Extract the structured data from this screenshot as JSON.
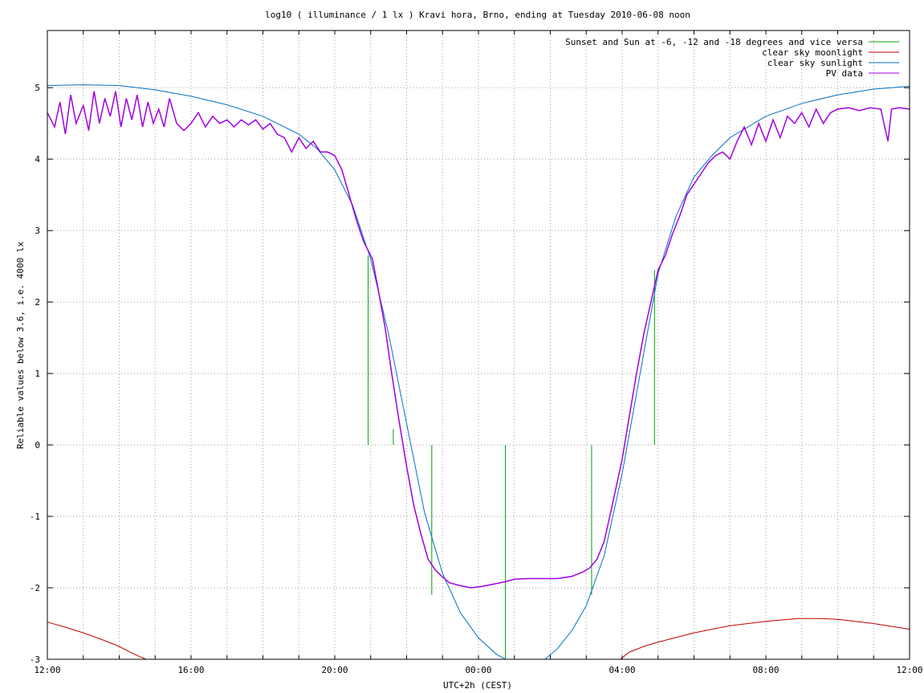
{
  "chart_data": {
    "type": "line",
    "title": "log10 ( illuminance / 1 lx ) Kravi hora, Brno, ending at Tuesday 2010-06-08 noon",
    "xlabel": "UTC+2h (CEST)",
    "ylabel": "Reliable values below 3.6, i.e. 4000 lx",
    "xlim": [
      0,
      24
    ],
    "ylim": [
      -3,
      5.8
    ],
    "x_unit": "hours since 2010-06-07 12:00 (UTC+2h)",
    "x_ticks": [
      {
        "v": 0,
        "label": "12:00"
      },
      {
        "v": 4,
        "label": "16:00"
      },
      {
        "v": 8,
        "label": "20:00"
      },
      {
        "v": 12,
        "label": "00:00"
      },
      {
        "v": 16,
        "label": "04:00"
      },
      {
        "v": 20,
        "label": "08:00"
      },
      {
        "v": 24,
        "label": "12:00"
      }
    ],
    "y_ticks": [
      {
        "v": -3,
        "label": "-3"
      },
      {
        "v": -2,
        "label": "-2"
      },
      {
        "v": -1,
        "label": "-1"
      },
      {
        "v": 0,
        "label": "0"
      },
      {
        "v": 1,
        "label": "1"
      },
      {
        "v": 2,
        "label": "2"
      },
      {
        "v": 3,
        "label": "3"
      },
      {
        "v": 4,
        "label": "4"
      },
      {
        "v": 5,
        "label": "5"
      }
    ],
    "grid": true,
    "legend_position": "top-right",
    "series": [
      {
        "name": "Sunset and Sun at -6, -12 and -18 degrees and vice versa",
        "color": "#00a000",
        "kind": "impulses",
        "points": [
          [
            8.93,
            2.65
          ],
          [
            9.63,
            0.22
          ],
          [
            10.7,
            -2.1
          ],
          [
            12.75,
            -3.0
          ],
          [
            15.15,
            -2.1
          ],
          [
            16.2,
            0.0
          ],
          [
            16.9,
            2.45
          ]
        ]
      },
      {
        "name": "clear sky moonlight",
        "color": "#c00000",
        "kind": "line",
        "points": [
          [
            0,
            -2.48
          ],
          [
            0.5,
            -2.55
          ],
          [
            1,
            -2.63
          ],
          [
            1.5,
            -2.72
          ],
          [
            2,
            -2.82
          ],
          [
            2.3,
            -2.9
          ],
          [
            2.6,
            -2.97
          ],
          [
            2.75,
            -3.0
          ],
          [
            15.95,
            -3.0
          ],
          [
            16.2,
            -2.9
          ],
          [
            16.6,
            -2.82
          ],
          [
            17,
            -2.76
          ],
          [
            18,
            -2.63
          ],
          [
            19,
            -2.53
          ],
          [
            20,
            -2.47
          ],
          [
            20.9,
            -2.43
          ],
          [
            21.5,
            -2.43
          ],
          [
            22,
            -2.44
          ],
          [
            23,
            -2.5
          ],
          [
            24,
            -2.58
          ]
        ]
      },
      {
        "name": "clear sky sunlight",
        "color": "#0070c0",
        "kind": "line",
        "points": [
          [
            0,
            5.03
          ],
          [
            1,
            5.04
          ],
          [
            2,
            5.03
          ],
          [
            3,
            4.97
          ],
          [
            4,
            4.88
          ],
          [
            5,
            4.76
          ],
          [
            6,
            4.6
          ],
          [
            7,
            4.35
          ],
          [
            7.5,
            4.15
          ],
          [
            8,
            3.85
          ],
          [
            8.5,
            3.35
          ],
          [
            9,
            2.6
          ],
          [
            9.5,
            1.55
          ],
          [
            10,
            0.3
          ],
          [
            10.5,
            -0.95
          ],
          [
            11,
            -1.8
          ],
          [
            11.5,
            -2.35
          ],
          [
            12,
            -2.7
          ],
          [
            12.5,
            -2.93
          ],
          [
            12.75,
            -3.0
          ],
          [
            13.85,
            -3.0
          ],
          [
            14.2,
            -2.85
          ],
          [
            14.6,
            -2.6
          ],
          [
            15,
            -2.25
          ],
          [
            15.5,
            -1.55
          ],
          [
            16,
            -0.4
          ],
          [
            16.5,
            1.0
          ],
          [
            17,
            2.4
          ],
          [
            17.5,
            3.2
          ],
          [
            18,
            3.75
          ],
          [
            18.5,
            4.05
          ],
          [
            19,
            4.3
          ],
          [
            20,
            4.6
          ],
          [
            21,
            4.78
          ],
          [
            22,
            4.9
          ],
          [
            23,
            4.98
          ],
          [
            24,
            5.02
          ]
        ]
      },
      {
        "name": "PV data",
        "color": "#a000e0",
        "kind": "line",
        "points": [
          [
            0,
            4.65
          ],
          [
            0.2,
            4.45
          ],
          [
            0.35,
            4.8
          ],
          [
            0.5,
            4.35
          ],
          [
            0.65,
            4.9
          ],
          [
            0.8,
            4.5
          ],
          [
            1,
            4.75
          ],
          [
            1.15,
            4.4
          ],
          [
            1.3,
            4.95
          ],
          [
            1.45,
            4.5
          ],
          [
            1.6,
            4.85
          ],
          [
            1.75,
            4.6
          ],
          [
            1.9,
            4.95
          ],
          [
            2.05,
            4.45
          ],
          [
            2.2,
            4.85
          ],
          [
            2.35,
            4.55
          ],
          [
            2.5,
            4.9
          ],
          [
            2.65,
            4.45
          ],
          [
            2.8,
            4.8
          ],
          [
            2.95,
            4.5
          ],
          [
            3.1,
            4.7
          ],
          [
            3.25,
            4.45
          ],
          [
            3.4,
            4.85
          ],
          [
            3.6,
            4.5
          ],
          [
            3.8,
            4.4
          ],
          [
            4,
            4.5
          ],
          [
            4.2,
            4.65
          ],
          [
            4.4,
            4.45
          ],
          [
            4.6,
            4.6
          ],
          [
            4.8,
            4.5
          ],
          [
            5,
            4.55
          ],
          [
            5.2,
            4.45
          ],
          [
            5.4,
            4.55
          ],
          [
            5.6,
            4.48
          ],
          [
            5.8,
            4.55
          ],
          [
            6,
            4.42
          ],
          [
            6.2,
            4.5
          ],
          [
            6.4,
            4.35
          ],
          [
            6.6,
            4.3
          ],
          [
            6.8,
            4.1
          ],
          [
            7,
            4.3
          ],
          [
            7.2,
            4.15
          ],
          [
            7.4,
            4.25
          ],
          [
            7.6,
            4.1
          ],
          [
            7.8,
            4.1
          ],
          [
            8,
            4.05
          ],
          [
            8.2,
            3.85
          ],
          [
            8.4,
            3.5
          ],
          [
            8.6,
            3.15
          ],
          [
            8.8,
            2.85
          ],
          [
            8.9,
            2.75
          ],
          [
            9.05,
            2.6
          ],
          [
            9.2,
            2.2
          ],
          [
            9.4,
            1.65
          ],
          [
            9.6,
            0.95
          ],
          [
            9.8,
            0.3
          ],
          [
            10,
            -0.3
          ],
          [
            10.2,
            -0.85
          ],
          [
            10.4,
            -1.25
          ],
          [
            10.6,
            -1.6
          ],
          [
            10.8,
            -1.75
          ],
          [
            11,
            -1.85
          ],
          [
            11.2,
            -1.93
          ],
          [
            11.5,
            -1.97
          ],
          [
            11.8,
            -2.0
          ],
          [
            12.1,
            -1.98
          ],
          [
            12.4,
            -1.95
          ],
          [
            12.7,
            -1.92
          ],
          [
            13,
            -1.88
          ],
          [
            13.4,
            -1.87
          ],
          [
            13.8,
            -1.87
          ],
          [
            14.2,
            -1.87
          ],
          [
            14.6,
            -1.84
          ],
          [
            14.9,
            -1.78
          ],
          [
            15.1,
            -1.72
          ],
          [
            15.3,
            -1.6
          ],
          [
            15.5,
            -1.35
          ],
          [
            15.7,
            -0.9
          ],
          [
            15.85,
            -0.55
          ],
          [
            16,
            -0.2
          ],
          [
            16.2,
            0.4
          ],
          [
            16.4,
            1.0
          ],
          [
            16.6,
            1.55
          ],
          [
            16.8,
            2.0
          ],
          [
            17,
            2.45
          ],
          [
            17.2,
            2.65
          ],
          [
            17.4,
            2.95
          ],
          [
            17.6,
            3.2
          ],
          [
            17.8,
            3.5
          ],
          [
            18,
            3.65
          ],
          [
            18.2,
            3.8
          ],
          [
            18.4,
            3.95
          ],
          [
            18.6,
            4.05
          ],
          [
            18.8,
            4.1
          ],
          [
            19,
            4.0
          ],
          [
            19.2,
            4.25
          ],
          [
            19.4,
            4.45
          ],
          [
            19.6,
            4.2
          ],
          [
            19.8,
            4.5
          ],
          [
            20,
            4.25
          ],
          [
            20.2,
            4.55
          ],
          [
            20.4,
            4.3
          ],
          [
            20.6,
            4.6
          ],
          [
            20.8,
            4.5
          ],
          [
            21,
            4.65
          ],
          [
            21.2,
            4.45
          ],
          [
            21.4,
            4.7
          ],
          [
            21.6,
            4.5
          ],
          [
            21.8,
            4.65
          ],
          [
            22,
            4.7
          ],
          [
            22.3,
            4.72
          ],
          [
            22.6,
            4.68
          ],
          [
            22.9,
            4.72
          ],
          [
            23.2,
            4.7
          ],
          [
            23.4,
            4.25
          ],
          [
            23.5,
            4.7
          ],
          [
            23.7,
            4.72
          ],
          [
            24,
            4.7
          ]
        ]
      }
    ]
  }
}
